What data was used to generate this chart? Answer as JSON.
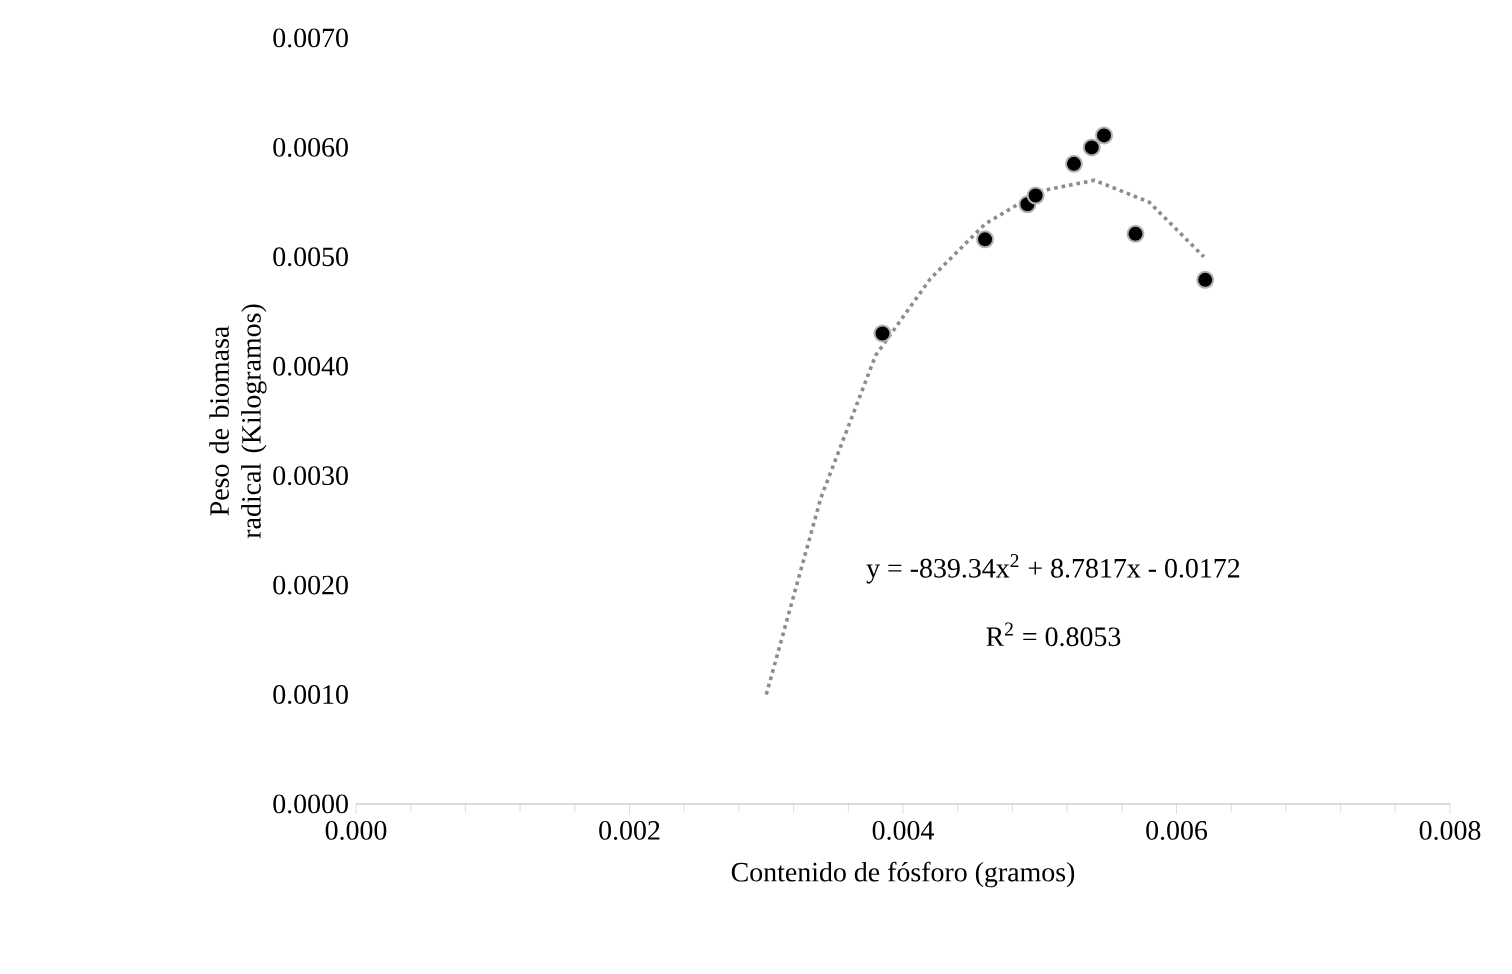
{
  "chart_data": {
    "type": "scatter",
    "xlabel": "Contenido de fósforo (gramos)",
    "ylabel": "Peso de biomasa radical (Kilogramos)",
    "xlim": [
      0,
      0.008
    ],
    "ylim": [
      0,
      0.007
    ],
    "xticks": [
      {
        "value": 0,
        "label": "0.000"
      },
      {
        "value": 0.002,
        "label": "0.002"
      },
      {
        "value": 0.004,
        "label": "0.004"
      },
      {
        "value": 0.006,
        "label": "0.006"
      },
      {
        "value": 0.008,
        "label": "0.008"
      }
    ],
    "yticks": [
      {
        "value": 0,
        "label": "0.0000"
      },
      {
        "value": 0.001,
        "label": "0.0010"
      },
      {
        "value": 0.002,
        "label": "0.0020"
      },
      {
        "value": 0.003,
        "label": "0.0030"
      },
      {
        "value": 0.004,
        "label": "0.0040"
      },
      {
        "value": 0.005,
        "label": "0.0050"
      },
      {
        "value": 0.006,
        "label": "0.0060"
      },
      {
        "value": 0.007,
        "label": "0.0070"
      }
    ],
    "grid": false,
    "series": [
      {
        "marker": "circle",
        "color": "#000000",
        "x": [
          0.00385,
          0.0046,
          0.00491,
          0.00497,
          0.00525,
          0.00538,
          0.00547,
          0.0057,
          0.00621
        ],
        "values": [
          0.0043,
          0.00516,
          0.00548,
          0.00556,
          0.00585,
          0.006,
          0.00611,
          0.00521,
          0.00479
        ]
      },
      {
        "type": "line",
        "line_style": "dotted",
        "marker": "none",
        "color": "#8c8c8c",
        "x": [
          0.003,
          0.0034,
          0.0038,
          0.0042,
          0.0046,
          0.005,
          0.0054,
          0.0058,
          0.0062
        ],
        "values": [
          0.001,
          0.0028,
          0.0041,
          0.0048,
          0.0053,
          0.0056,
          0.0057,
          0.0055,
          0.005
        ]
      }
    ],
    "annotations": [
      "y = -839.34x$^{2}$ + 8.7817x - 0.0172",
      "R$^{2}$ = 0.8053"
    ]
  }
}
